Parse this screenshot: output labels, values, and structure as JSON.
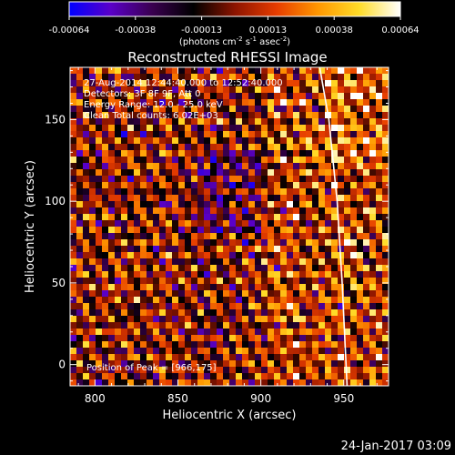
{
  "chart_data": {
    "type": "heatmap",
    "title": "Reconstructed RHESSI Image",
    "xlabel": "Heliocentric X (arcsec)",
    "ylabel": "Heliocentric Y (arcsec)",
    "xlim": [
      785,
      977
    ],
    "ylim": [
      -13,
      182
    ],
    "x_ticks": [
      800,
      850,
      900,
      950
    ],
    "y_ticks": [
      0,
      50,
      100,
      150
    ],
    "colorbar": {
      "unit_label_prefix": "(photons cm",
      "unit_sup1": "-2",
      "unit_label_mid1": " s",
      "unit_sup2": "-1",
      "unit_label_mid2": " asec",
      "unit_sup3": "-2",
      "unit_label_suffix": ")",
      "range": [
        -0.00064,
        0.00064
      ],
      "tick_labels": [
        "-0.00064",
        "-0.00038",
        "-0.00013",
        "0.00013",
        "0.00038",
        "0.00064"
      ],
      "colormap": [
        "#0000ff",
        "#5a00c8",
        "#3a0050",
        "#000000",
        "#8c1400",
        "#e63c00",
        "#ff9600",
        "#ffdc28",
        "#ffffff"
      ]
    },
    "annotations": [
      "27-Aug-2014 12:44:40.000 to 12:52:40.000",
      "Detectors: 3F 8F 9F, Att 0",
      "Energy Range: 12.0 - 25.0 keV",
      "Clean     Total counts: 6.02E+03"
    ],
    "peak_text": "Position of Peak = [966,175]",
    "limb_line": {
      "x": [
        935,
        941,
        946,
        949,
        952
      ],
      "y": [
        185,
        150,
        100,
        50,
        -13
      ]
    },
    "footer_date": "24-Jan-2017 03:09"
  }
}
